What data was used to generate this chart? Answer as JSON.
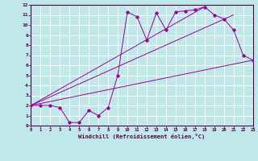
{
  "bg_color": "#c0e8e8",
  "line_color": "#990099",
  "grid_color": "#ffffff",
  "xlabel": "Windchill (Refroidissement éolien,°C)",
  "line1_x": [
    0,
    1,
    2,
    3,
    4,
    5,
    6,
    7,
    8,
    9,
    10,
    11,
    12,
    13,
    14,
    15,
    16,
    17,
    18,
    19,
    20,
    21,
    22,
    23
  ],
  "line1_y": [
    2,
    2,
    2,
    1.8,
    0.3,
    0.3,
    1.5,
    1.0,
    1.8,
    5.0,
    11.3,
    10.8,
    8.5,
    11.2,
    9.5,
    11.3,
    11.4,
    11.5,
    11.8,
    11.0,
    10.6,
    9.5,
    7.0,
    6.5
  ],
  "line2_x": [
    0,
    23
  ],
  "line2_y": [
    2,
    6.5
  ],
  "line3_x": [
    0,
    21
  ],
  "line3_y": [
    2,
    11.0
  ],
  "line4_x": [
    0,
    18
  ],
  "line4_y": [
    2,
    11.8
  ],
  "xlim": [
    0,
    23
  ],
  "ylim": [
    0,
    12
  ],
  "xticks": [
    0,
    1,
    2,
    3,
    4,
    5,
    6,
    7,
    8,
    9,
    10,
    11,
    12,
    13,
    14,
    15,
    16,
    17,
    18,
    19,
    20,
    21,
    22,
    23
  ],
  "yticks": [
    0,
    1,
    2,
    3,
    4,
    5,
    6,
    7,
    8,
    9,
    10,
    11,
    12
  ]
}
